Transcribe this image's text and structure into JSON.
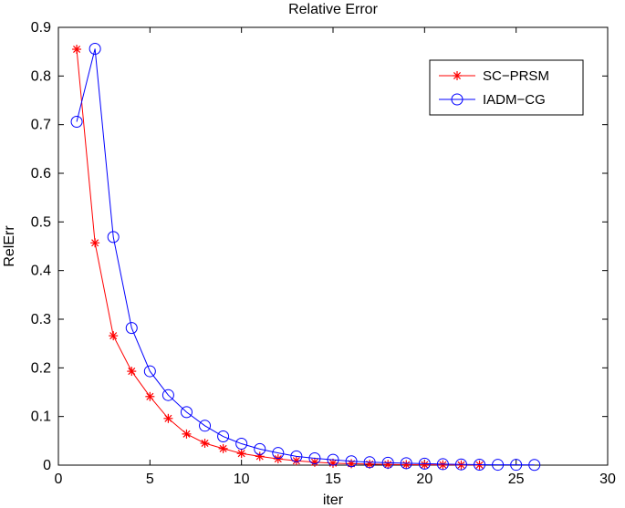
{
  "chart_data": {
    "type": "line",
    "title": "Relative Error",
    "xlabel": "iter",
    "ylabel": "RelErr",
    "xlim": [
      0,
      30
    ],
    "ylim": [
      0,
      0.9
    ],
    "xticks": [
      "0",
      "5",
      "10",
      "15",
      "20",
      "25",
      "30"
    ],
    "yticks": [
      "0",
      "0.1",
      "0.2",
      "0.3",
      "0.4",
      "0.5",
      "0.6",
      "0.7",
      "0.8",
      "0.9"
    ],
    "grid": false,
    "legend_position": "top-right",
    "series": [
      {
        "name": "SC−PRSM",
        "color": "#ff0000",
        "marker": "asterisk",
        "x": [
          1,
          2,
          3,
          4,
          5,
          6,
          7,
          8,
          9,
          10,
          11,
          12,
          13,
          14,
          15,
          16,
          17,
          18,
          19,
          20,
          21,
          22,
          23
        ],
        "y": [
          0.855,
          0.457,
          0.266,
          0.193,
          0.141,
          0.096,
          0.064,
          0.045,
          0.034,
          0.024,
          0.018,
          0.013,
          0.009,
          0.006,
          0.004,
          0.003,
          0.002,
          0.0015,
          0.001,
          0.0008,
          0.0006,
          0.0004,
          0.0003
        ]
      },
      {
        "name": "IADM−CG",
        "color": "#0000ff",
        "marker": "circle",
        "x": [
          1,
          2,
          3,
          4,
          5,
          6,
          7,
          8,
          9,
          10,
          11,
          12,
          13,
          14,
          15,
          16,
          17,
          18,
          19,
          20,
          21,
          22,
          23,
          24,
          25,
          26
        ],
        "y": [
          0.706,
          0.856,
          0.469,
          0.282,
          0.193,
          0.144,
          0.109,
          0.081,
          0.059,
          0.044,
          0.033,
          0.025,
          0.018,
          0.014,
          0.011,
          0.008,
          0.006,
          0.005,
          0.004,
          0.003,
          0.002,
          0.0015,
          0.001,
          0.0008,
          0.0006,
          0.0005
        ]
      }
    ]
  }
}
